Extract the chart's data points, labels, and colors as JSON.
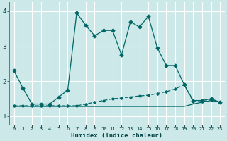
{
  "xlabel": "Humidex (Indice chaleur)",
  "background_color": "#cce8e8",
  "grid_color": "#ffffff",
  "line_color": "#006666",
  "xlim": [
    -0.5,
    23.5
  ],
  "ylim": [
    0.75,
    4.25
  ],
  "yticks": [
    1,
    2,
    3,
    4
  ],
  "xtick_labels": [
    "0",
    "1",
    "2",
    "3",
    "4",
    "5",
    "6",
    "7",
    "8",
    "9",
    "10",
    "11",
    "12",
    "13",
    "14",
    "15",
    "16",
    "17",
    "18",
    "19",
    "20",
    "21",
    "22",
    "23"
  ],
  "series1_x": [
    0,
    1,
    2,
    3,
    4,
    5,
    6,
    7,
    8,
    9,
    10,
    11,
    12,
    13,
    14,
    15,
    16,
    17,
    18,
    19,
    20,
    21,
    22,
    23
  ],
  "series1_y": [
    2.3,
    1.8,
    1.35,
    1.35,
    1.35,
    1.55,
    1.75,
    3.95,
    3.6,
    3.3,
    3.45,
    3.45,
    2.75,
    3.7,
    3.55,
    3.85,
    2.95,
    2.45,
    2.45,
    1.9,
    1.45,
    1.45,
    1.5,
    1.4
  ],
  "series2_x": [
    0,
    1,
    2,
    3,
    4,
    5,
    6,
    7,
    8,
    9,
    10,
    11,
    12,
    13,
    14,
    15,
    16,
    17,
    18,
    19,
    20,
    21,
    22,
    23
  ],
  "series2_y": [
    1.3,
    1.3,
    1.3,
    1.3,
    1.3,
    1.3,
    1.3,
    1.3,
    1.35,
    1.4,
    1.45,
    1.5,
    1.52,
    1.55,
    1.58,
    1.6,
    1.65,
    1.7,
    1.78,
    1.9,
    1.42,
    1.42,
    1.47,
    1.4
  ],
  "series3_x": [
    0,
    1,
    2,
    3,
    4,
    5,
    6,
    7,
    8,
    9,
    10,
    11,
    12,
    13,
    14,
    15,
    16,
    17,
    18,
    19,
    20,
    21,
    22,
    23
  ],
  "series3_y": [
    1.28,
    1.28,
    1.28,
    1.28,
    1.28,
    1.28,
    1.28,
    1.28,
    1.28,
    1.28,
    1.28,
    1.28,
    1.28,
    1.28,
    1.28,
    1.28,
    1.28,
    1.28,
    1.28,
    1.28,
    1.35,
    1.4,
    1.45,
    1.4
  ]
}
